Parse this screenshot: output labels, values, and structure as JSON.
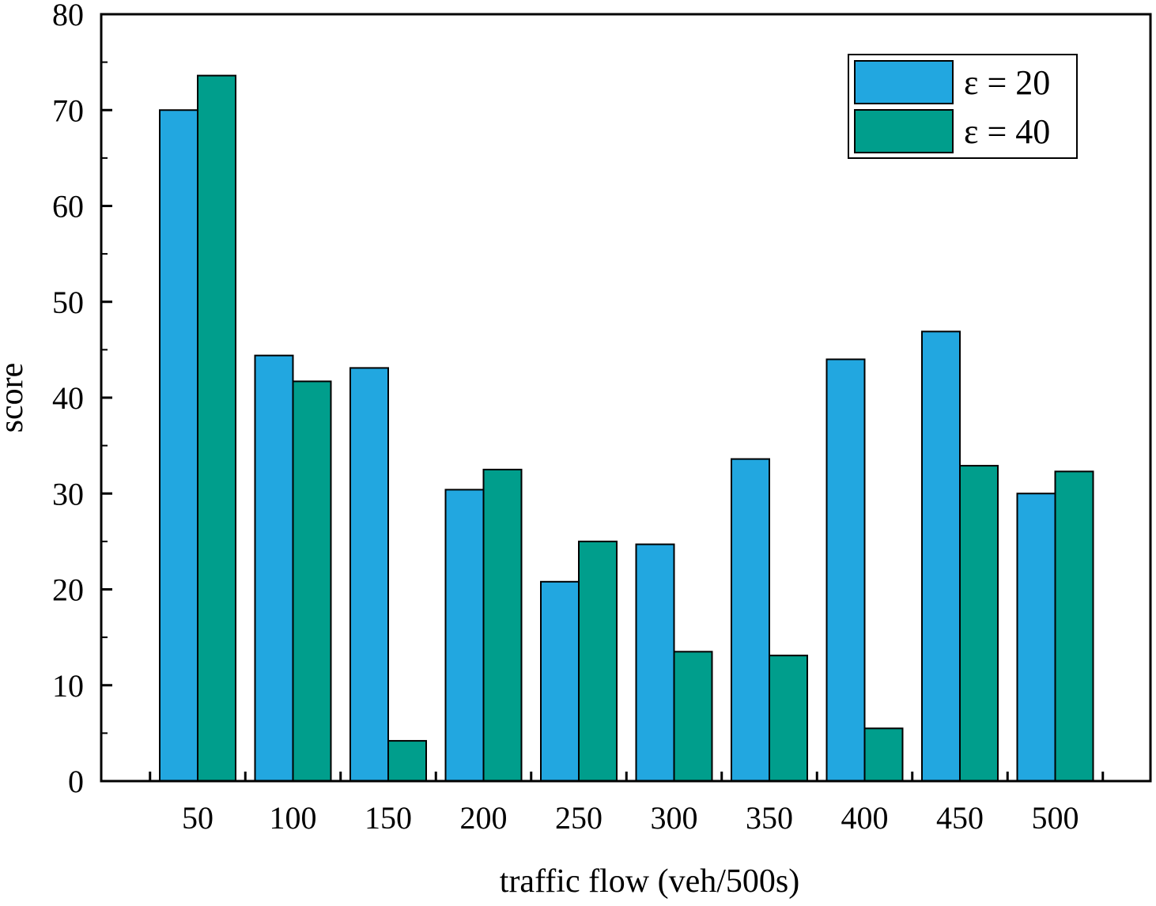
{
  "chart_data": {
    "type": "bar",
    "title": "",
    "xlabel": "traffic flow (veh/500s)",
    "ylabel": "score",
    "categories": [
      "50",
      "100",
      "150",
      "200",
      "250",
      "300",
      "350",
      "400",
      "450",
      "500"
    ],
    "series": [
      {
        "name": "ε = 20",
        "color": "#22a7e0",
        "values": [
          70.0,
          44.4,
          43.1,
          30.4,
          20.8,
          24.7,
          33.6,
          44.0,
          46.9,
          30.0
        ]
      },
      {
        "name": "ε = 40",
        "color": "#009e8c",
        "values": [
          73.6,
          41.7,
          4.2,
          32.5,
          25.0,
          13.5,
          13.1,
          5.5,
          32.9,
          32.3
        ]
      }
    ],
    "ylim": [
      0,
      80
    ],
    "yticks": [
      0,
      10,
      20,
      30,
      40,
      50,
      60,
      70,
      80
    ],
    "grid": false,
    "legend_position": "top-right"
  }
}
